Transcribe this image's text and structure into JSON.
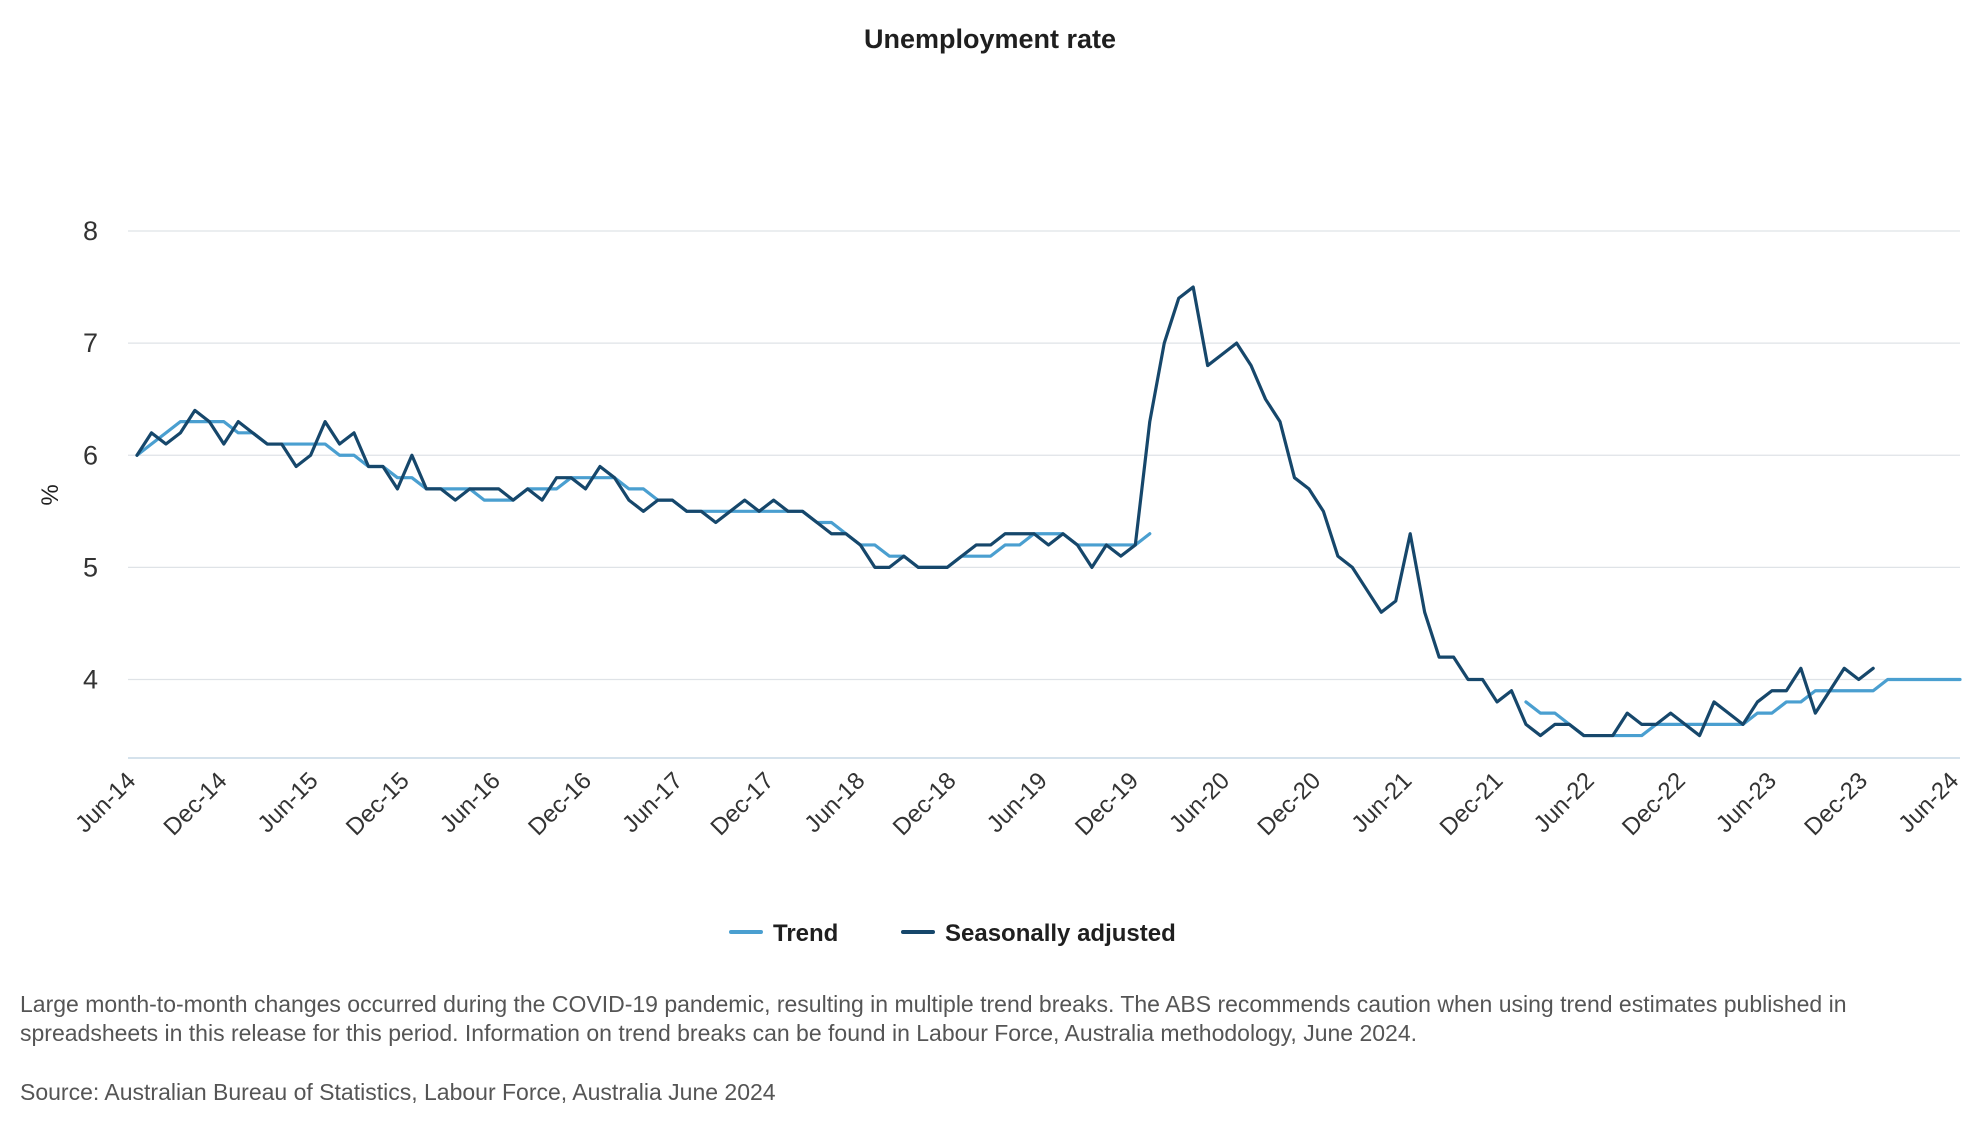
{
  "chart_data": {
    "type": "line",
    "title": "Unemployment rate",
    "ylabel": "%",
    "xlabel": "",
    "ylim": [
      3.3,
      8
    ],
    "yticks": [
      4,
      5,
      6,
      7,
      8
    ],
    "grid": true,
    "legend_position": "bottom",
    "x_tick_labels": [
      "Jun-14",
      "Dec-14",
      "Jun-15",
      "Dec-15",
      "Jun-16",
      "Dec-16",
      "Jun-17",
      "Dec-17",
      "Jun-18",
      "Dec-18",
      "Jun-19",
      "Dec-19",
      "Jun-20",
      "Dec-20",
      "Jun-21",
      "Dec-21",
      "Jun-22",
      "Dec-22",
      "Jun-23",
      "Dec-23",
      "Jun-24"
    ],
    "x_start": "Jun-14",
    "x_end": "Jun-24",
    "series": [
      {
        "name": "Trend",
        "color": "#4a9fd0",
        "values": [
          6.0,
          6.1,
          6.2,
          6.3,
          6.3,
          6.3,
          6.3,
          6.2,
          6.2,
          6.1,
          6.1,
          6.1,
          6.1,
          6.1,
          6.0,
          6.0,
          5.9,
          5.9,
          5.8,
          5.8,
          5.7,
          5.7,
          5.7,
          5.7,
          5.6,
          5.6,
          5.6,
          5.7,
          5.7,
          5.7,
          5.8,
          5.8,
          5.8,
          5.8,
          5.7,
          5.7,
          5.6,
          5.6,
          5.5,
          5.5,
          5.5,
          5.5,
          5.5,
          5.5,
          5.5,
          5.5,
          5.5,
          5.4,
          5.4,
          5.3,
          5.2,
          5.2,
          5.1,
          5.1,
          5.0,
          5.0,
          5.0,
          5.1,
          5.1,
          5.1,
          5.2,
          5.2,
          5.3,
          5.3,
          5.3,
          5.2,
          5.2,
          5.2,
          5.2,
          5.2,
          5.3,
          null,
          null,
          null,
          null,
          null,
          null,
          null,
          null,
          null,
          null,
          null,
          null,
          null,
          null,
          null,
          null,
          null,
          null,
          null,
          null,
          null,
          null,
          null,
          null,
          null,
          3.8,
          3.7,
          3.7,
          3.6,
          3.5,
          3.5,
          3.5,
          3.5,
          3.5,
          3.6,
          3.6,
          3.6,
          3.6,
          3.6,
          3.6,
          3.6,
          3.7,
          3.7,
          3.8,
          3.8,
          3.9,
          3.9,
          3.9,
          3.9,
          3.9,
          4.0,
          4.0,
          4.0,
          4.0,
          4.0,
          4.0
        ]
      },
      {
        "name": "Seasonally adjusted",
        "color": "#16476b",
        "values": [
          6.0,
          6.2,
          6.1,
          6.2,
          6.4,
          6.3,
          6.1,
          6.3,
          6.2,
          6.1,
          6.1,
          5.9,
          6.0,
          6.3,
          6.1,
          6.2,
          5.9,
          5.9,
          5.7,
          6.0,
          5.7,
          5.7,
          5.6,
          5.7,
          5.7,
          5.7,
          5.6,
          5.7,
          5.6,
          5.8,
          5.8,
          5.7,
          5.9,
          5.8,
          5.6,
          5.5,
          5.6,
          5.6,
          5.5,
          5.5,
          5.4,
          5.5,
          5.6,
          5.5,
          5.6,
          5.5,
          5.5,
          5.4,
          5.3,
          5.3,
          5.2,
          5.0,
          5.0,
          5.1,
          5.0,
          5.0,
          5.0,
          5.1,
          5.2,
          5.2,
          5.3,
          5.3,
          5.3,
          5.2,
          5.3,
          5.2,
          5.0,
          5.2,
          5.1,
          5.2,
          6.3,
          7.0,
          7.4,
          7.5,
          6.8,
          6.9,
          7.0,
          6.8,
          6.5,
          6.3,
          5.8,
          5.7,
          5.5,
          5.1,
          5.0,
          4.8,
          4.6,
          4.7,
          5.3,
          4.6,
          4.2,
          4.2,
          4.0,
          4.0,
          3.8,
          3.9,
          3.6,
          3.5,
          3.6,
          3.6,
          3.5,
          3.5,
          3.5,
          3.7,
          3.6,
          3.6,
          3.7,
          3.6,
          3.5,
          3.8,
          3.7,
          3.6,
          3.8,
          3.9,
          3.9,
          4.1,
          3.7,
          3.9,
          4.1,
          4.0,
          4.1
        ]
      }
    ]
  },
  "notes": {
    "covid_note": "Large month-to-month changes occurred during the COVID-19 pandemic, resulting in multiple trend breaks. The ABS recommends caution when using trend estimates published in spreadsheets in this release for this period. Information on trend breaks can be found in Labour Force, Australia methodology, June 2024.",
    "source": "Source: Australian Bureau of Statistics, Labour Force, Australia June 2024"
  }
}
